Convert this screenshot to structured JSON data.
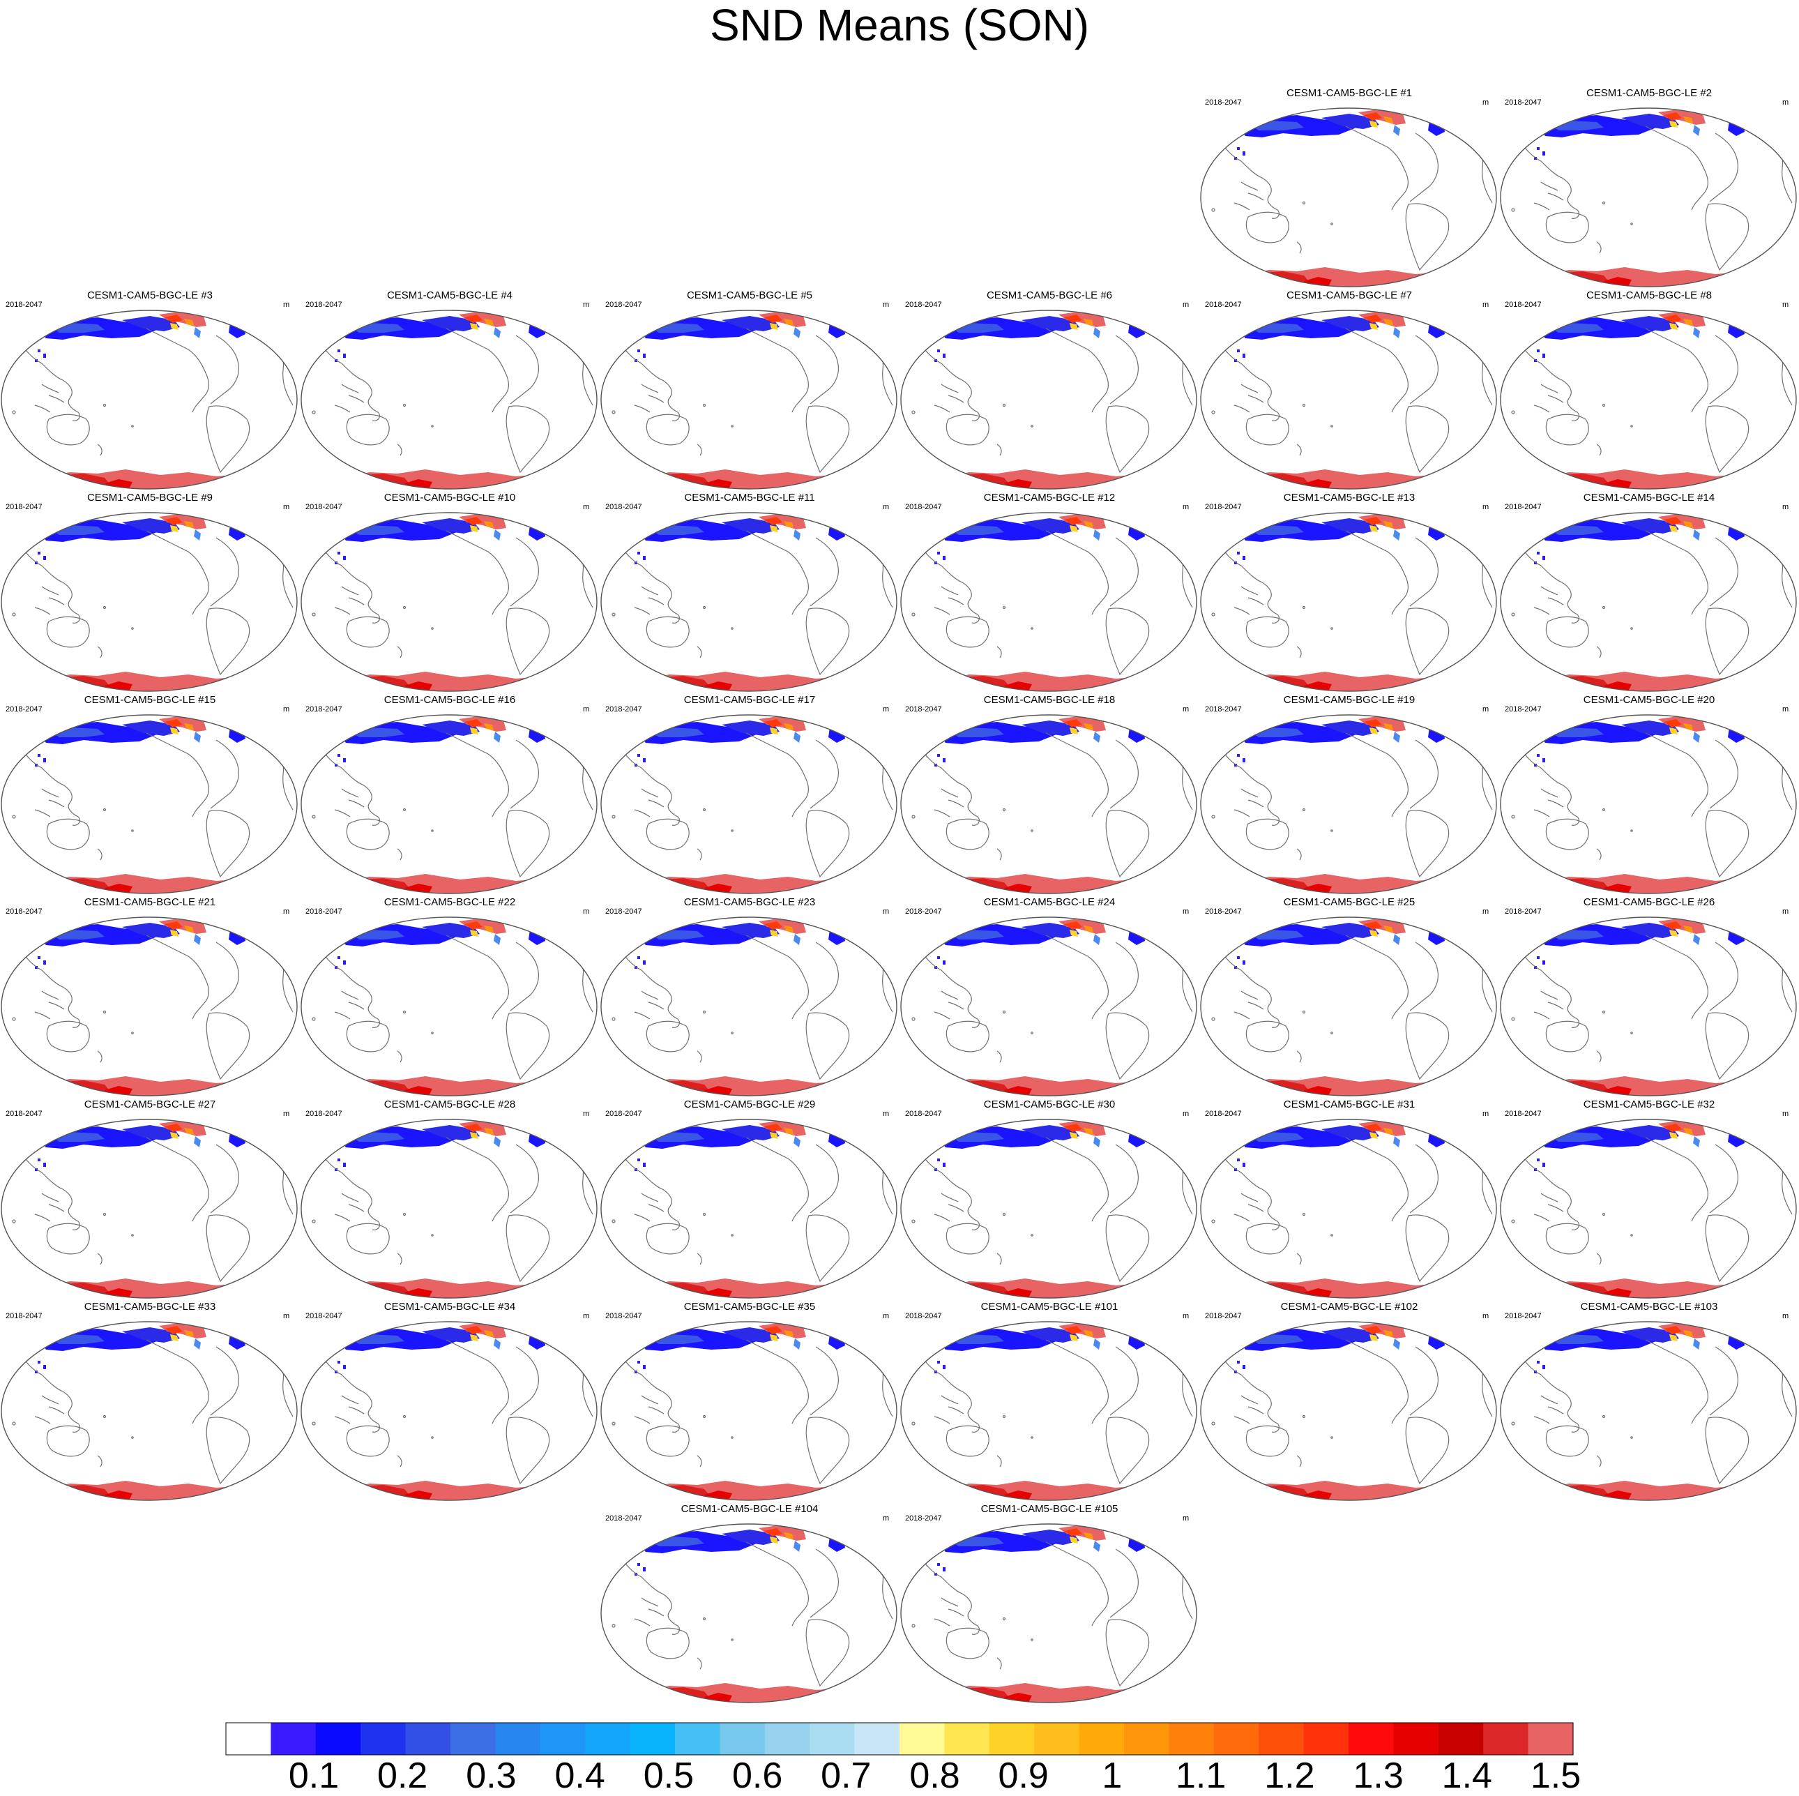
{
  "title": "SND Means (SON)",
  "panel_period": "2018-2047",
  "panel_unit": "m",
  "panels": [
    "CESM1-CAM5-BGC-LE #1",
    "CESM1-CAM5-BGC-LE #2",
    "CESM1-CAM5-BGC-LE #3",
    "CESM1-CAM5-BGC-LE #4",
    "CESM1-CAM5-BGC-LE #5",
    "CESM1-CAM5-BGC-LE #6",
    "CESM1-CAM5-BGC-LE #7",
    "CESM1-CAM5-BGC-LE #8",
    "CESM1-CAM5-BGC-LE #9",
    "CESM1-CAM5-BGC-LE #10",
    "CESM1-CAM5-BGC-LE #11",
    "CESM1-CAM5-BGC-LE #12",
    "CESM1-CAM5-BGC-LE #13",
    "CESM1-CAM5-BGC-LE #14",
    "CESM1-CAM5-BGC-LE #15",
    "CESM1-CAM5-BGC-LE #16",
    "CESM1-CAM5-BGC-LE #17",
    "CESM1-CAM5-BGC-LE #18",
    "CESM1-CAM5-BGC-LE #19",
    "CESM1-CAM5-BGC-LE #20",
    "CESM1-CAM5-BGC-LE #21",
    "CESM1-CAM5-BGC-LE #22",
    "CESM1-CAM5-BGC-LE #23",
    "CESM1-CAM5-BGC-LE #24",
    "CESM1-CAM5-BGC-LE #25",
    "CESM1-CAM5-BGC-LE #26",
    "CESM1-CAM5-BGC-LE #27",
    "CESM1-CAM5-BGC-LE #28",
    "CESM1-CAM5-BGC-LE #29",
    "CESM1-CAM5-BGC-LE #30",
    "CESM1-CAM5-BGC-LE #31",
    "CESM1-CAM5-BGC-LE #32",
    "CESM1-CAM5-BGC-LE #33",
    "CESM1-CAM5-BGC-LE #34",
    "CESM1-CAM5-BGC-LE #35",
    "CESM1-CAM5-BGC-LE #101",
    "CESM1-CAM5-BGC-LE #102",
    "CESM1-CAM5-BGC-LE #103",
    "CESM1-CAM5-BGC-LE #104",
    "CESM1-CAM5-BGC-LE #105"
  ],
  "chart_data": {
    "type": "heatmap",
    "title": "SND Means (SON)",
    "variable": "SND",
    "season": "SON",
    "units": "m",
    "period": "2018-2047",
    "projection": "Robinson, Pacific-centered",
    "colorbar": {
      "levels": [
        "0.1",
        "0.2",
        "0.3",
        "0.4",
        "0.5",
        "0.6",
        "0.7",
        "0.8",
        "0.9",
        "1",
        "1.1",
        "1.2",
        "1.3",
        "1.4",
        "1.5"
      ],
      "colors": [
        "#ffffff",
        "#3a1aff",
        "#0a0aff",
        "#1e32f0",
        "#3250e6",
        "#3c6ee6",
        "#2886f0",
        "#1e96f8",
        "#14a6fa",
        "#0ab4fc",
        "#46c0f4",
        "#78c8ee",
        "#96d2ee",
        "#aadcf2",
        "#c8e6f6",
        "#fffa96",
        "#ffe650",
        "#ffd228",
        "#ffbe1e",
        "#ffaa0a",
        "#ff960a",
        "#ff800a",
        "#ff6a0a",
        "#ff500a",
        "#ff320a",
        "#ff0a0a",
        "#e60000",
        "#c80000",
        "#dc2828",
        "#e86464"
      ]
    }
  }
}
